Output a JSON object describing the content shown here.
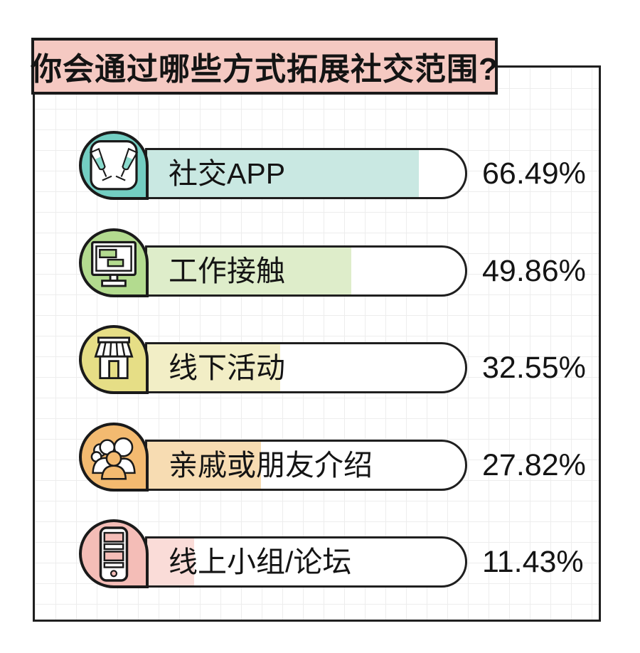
{
  "title": "你会通过哪些方式拓展社交范围?",
  "chart_data": {
    "type": "bar",
    "orientation": "horizontal",
    "title": "你会通过哪些方式拓展社交范围?",
    "categories": [
      "社交APP",
      "工作接触",
      "线下活动",
      "亲戚或朋友介绍",
      "线上小组/论坛"
    ],
    "values": [
      66.49,
      49.86,
      32.55,
      27.82,
      11.43
    ],
    "value_labels": [
      "66.49%",
      "49.86%",
      "32.55%",
      "27.82%",
      "11.43%"
    ],
    "unit": "%",
    "xlim": [
      0,
      80
    ],
    "grid": true,
    "legend": "none",
    "bar_colors": [
      "#73cec2",
      "#b3db8f",
      "#e6de86",
      "#f3ba70",
      "#f4bdb7"
    ],
    "track_fill_colors": [
      "#c9e8e2",
      "#deedca",
      "#f2eec6",
      "#f7dcb2",
      "#fadcd8"
    ]
  },
  "rows": [
    {
      "label": "社交APP",
      "value": 66.49,
      "value_label": "66.49%",
      "icon": "champagne-glasses-icon",
      "badge_color": "#73cec2",
      "fill_color": "#c9e8e2"
    },
    {
      "label": "工作接触",
      "value": 49.86,
      "value_label": "49.86%",
      "icon": "computer-monitor-icon",
      "badge_color": "#b3db8f",
      "fill_color": "#deedca"
    },
    {
      "label": "线下活动",
      "value": 32.55,
      "value_label": "32.55%",
      "icon": "storefront-icon",
      "badge_color": "#e6de86",
      "fill_color": "#f2eec6"
    },
    {
      "label": "亲戚或朋友介绍",
      "value": 27.82,
      "value_label": "27.82%",
      "icon": "people-group-icon",
      "badge_color": "#f3ba70",
      "fill_color": "#f7dcb2"
    },
    {
      "label": "线上小组/论坛",
      "value": 11.43,
      "value_label": "11.43%",
      "icon": "smartphone-list-icon",
      "badge_color": "#f4bdb7",
      "fill_color": "#fadcd8"
    }
  ],
  "colors": {
    "title_bg": "#f5c9c2",
    "ink": "#1a1a1a",
    "grid_line": "#ededed",
    "background": "#ffffff"
  }
}
